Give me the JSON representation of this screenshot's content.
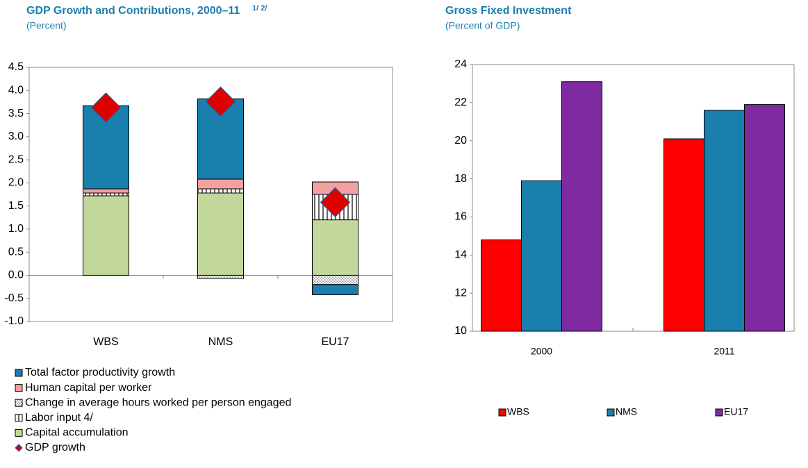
{
  "chart_data": [
    {
      "type": "stacked-bar",
      "title": "GDP Growth  and Contributions, 2000–11",
      "title_note": "1/ 2/",
      "subtitle": "(Percent)",
      "categories": [
        "WBS",
        "NMS",
        "EU17"
      ],
      "ylim": [
        -1.0,
        4.5
      ],
      "yticks": [
        {
          "value": -1,
          "label": "-1.0"
        },
        -0.5,
        {
          "value": 0,
          "label": "0.0"
        },
        0.5,
        {
          "value": 1,
          "label": "1.0"
        },
        1.5,
        {
          "value": 2,
          "label": "2.0"
        },
        2.5,
        {
          "value": 3,
          "label": "3.0"
        },
        3.5,
        {
          "value": 4,
          "label": "4.0"
        },
        4.5
      ],
      "series": [
        {
          "name": "Capital accumulation",
          "color": "#c2d89a",
          "values": [
            1.72,
            1.78,
            1.2
          ]
        },
        {
          "name": "Labor input  4/",
          "color": "stripes",
          "values": [
            0.06,
            0.09,
            0.55
          ]
        },
        {
          "name": "Change in average hours worked per person engaged",
          "color": "dots",
          "values": [
            0,
            -0.07,
            -0.2
          ]
        },
        {
          "name": "Human capital per worker",
          "color": "#f2a0a0",
          "values": [
            0.09,
            0.21,
            0.27
          ]
        },
        {
          "name": "Total factor productivity growth",
          "color": "#1a7fac",
          "values": [
            1.8,
            1.74,
            -0.22
          ]
        }
      ],
      "line_series": {
        "name": "GDP growth",
        "color": "#e00000",
        "values": [
          3.63,
          3.76,
          1.58
        ]
      }
    },
    {
      "type": "bar",
      "title": "Gross Fixed Investment",
      "subtitle": "(Percent of GDP)",
      "categories": [
        "2000",
        "2011"
      ],
      "ylim": [
        10,
        24
      ],
      "yticks": [
        10,
        12,
        14,
        16,
        18,
        20,
        22,
        24
      ],
      "series": [
        {
          "name": "WBS",
          "color": "#ff0000",
          "values": [
            14.8,
            20.1
          ]
        },
        {
          "name": "NMS",
          "color": "#1a7fac",
          "values": [
            17.9,
            21.6
          ]
        },
        {
          "name": "EU17",
          "color": "#7f2aa0",
          "values": [
            23.1,
            21.9
          ]
        }
      ]
    }
  ]
}
